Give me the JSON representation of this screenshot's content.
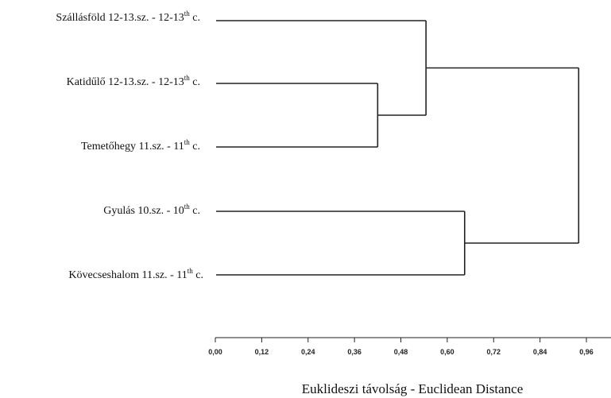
{
  "chart_data": {
    "type": "dendrogram",
    "leaves": [
      {
        "label": "Szállásföld 12-13.sz. - 12-13",
        "sup": "th",
        "suffix": " c."
      },
      {
        "label": "Katidűlő 12-13.sz. - 12-13",
        "sup": "th",
        "suffix": " c."
      },
      {
        "label": "Temetőhegy 11.sz. - 11",
        "sup": "th",
        "suffix": " c."
      },
      {
        "label": "Gyulás 10.sz. - 10",
        "sup": "th",
        "suffix": " c."
      },
      {
        "label": "Kövecseshalom 11.sz. - 11",
        "sup": "th",
        "suffix": " c."
      }
    ],
    "merges": [
      {
        "left": 1,
        "right": 2,
        "distance": 0.42
      },
      {
        "left": 0,
        "right": "m0",
        "distance": 0.545
      },
      {
        "left": 3,
        "right": 4,
        "distance": 0.645
      },
      {
        "left": "m1",
        "right": "m2",
        "distance": 0.94
      }
    ],
    "xticks": [
      "0,00",
      "0,12",
      "0,24",
      "0,36",
      "0,48",
      "0,60",
      "0,72",
      "0,84",
      "0,96"
    ],
    "xtick_values": [
      0,
      0.12,
      0.24,
      0.36,
      0.48,
      0.6,
      0.72,
      0.84,
      0.96
    ],
    "xlim": [
      0,
      1.0
    ],
    "xlabel": "Euklideszi távolság - Euclidean Distance",
    "grid": false
  }
}
